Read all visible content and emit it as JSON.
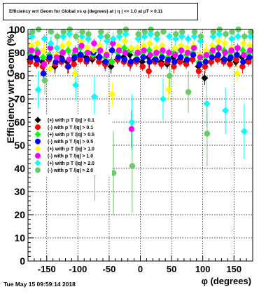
{
  "footer": "Tue May 15 09:59:14 2018",
  "colors": {
    "frame": "#000000",
    "grid": "#000000",
    "series": [
      "#000000",
      "#ff0000",
      "#00ff00",
      "#0000ff",
      "#ffff00",
      "#ff00ff",
      "#00ffff",
      "#66cc66"
    ]
  },
  "chart_data": {
    "type": "scatter",
    "title": "Efficiency wrt Geom for Global vs φ (degrees) at | η | <= 1.0 at pT > 0.11",
    "xlabel": "φ (degrees)",
    "ylabel": "Efficiency wrt Geom (%)",
    "xlim": [
      -180,
      180
    ],
    "ylim": [
      0,
      100
    ],
    "xticks": [
      -150,
      -100,
      -50,
      0,
      50,
      100,
      150
    ],
    "yticks": [
      0,
      10,
      20,
      30,
      40,
      50,
      60,
      70,
      80,
      90,
      100
    ],
    "grid": true,
    "legend_position": "left-middle",
    "legend": [
      "(+) with p T /|q| > 0.1",
      "(-) with p T /|q| > 0.1",
      "(+) with p T /|q| > 0.5",
      "(-) with p T /|q| > 0.5",
      "(+) with p T /|q| > 1.0",
      "(-) with p T /|q| > 1.0",
      "(+) with p T /|q| > 2.0",
      "(-) with p T /|q| > 2.0"
    ],
    "series": [
      {
        "name": "(+) with p T /|q| > 0.1",
        "x": [
          -175,
          -165,
          -155,
          -145,
          -135,
          -125,
          -115,
          -105,
          -95,
          -85,
          -75,
          -65,
          -55,
          -45,
          -35,
          -25,
          -15,
          -5,
          5,
          15,
          25,
          35,
          45,
          55,
          65,
          75,
          85,
          95,
          105,
          115,
          125,
          135,
          145,
          155,
          165,
          175
        ],
        "y": [
          87,
          88,
          86,
          87,
          84,
          88,
          86,
          87,
          89,
          88,
          87,
          88,
          86,
          84,
          87,
          88,
          89,
          87,
          86,
          88,
          87,
          86,
          85,
          88,
          87,
          86,
          87,
          84,
          79,
          86,
          88,
          87,
          87,
          86,
          88,
          87
        ],
        "err": [
          1,
          1,
          1,
          2,
          3,
          2,
          2,
          2,
          1,
          2,
          2,
          2,
          3,
          3,
          2,
          2,
          2,
          2,
          2,
          2,
          2,
          2,
          2,
          2,
          2,
          2,
          2,
          3,
          3,
          2,
          2,
          2,
          2,
          2,
          2,
          1
        ]
      },
      {
        "name": "(-) with p T /|q| > 0.1",
        "x": [
          -175,
          -165,
          -155,
          -145,
          -135,
          -125,
          -115,
          -105,
          -95,
          -85,
          -75,
          -65,
          -55,
          -45,
          -35,
          -25,
          -15,
          -5,
          5,
          15,
          25,
          35,
          45,
          55,
          65,
          75,
          85,
          95,
          105,
          115,
          125,
          135,
          145,
          155,
          165,
          175
        ],
        "y": [
          86,
          85,
          84,
          87,
          85,
          86,
          84,
          85,
          87,
          86,
          88,
          86,
          85,
          86,
          87,
          86,
          85,
          86,
          84,
          82,
          86,
          85,
          86,
          84,
          86,
          85,
          87,
          82,
          84,
          86,
          87,
          86,
          85,
          87,
          84,
          86
        ],
        "err": [
          2,
          2,
          3,
          2,
          3,
          2,
          3,
          2,
          2,
          2,
          2,
          2,
          3,
          2,
          2,
          2,
          3,
          2,
          2,
          3,
          2,
          2,
          2,
          3,
          2,
          2,
          2,
          3,
          3,
          2,
          2,
          2,
          2,
          2,
          3,
          2
        ]
      },
      {
        "name": "(+) with p T /|q| > 0.5",
        "x": [
          -175,
          -165,
          -155,
          -145,
          -135,
          -125,
          -115,
          -105,
          -95,
          -85,
          -75,
          -65,
          -55,
          -45,
          -35,
          -25,
          -15,
          -5,
          5,
          15,
          25,
          35,
          45,
          55,
          65,
          75,
          85,
          95,
          105,
          115,
          125,
          135,
          145,
          155,
          165,
          175
        ],
        "y": [
          90,
          91,
          88,
          89,
          86,
          90,
          91,
          89,
          92,
          90,
          89,
          91,
          88,
          86,
          90,
          92,
          91,
          89,
          90,
          91,
          89,
          90,
          88,
          90,
          91,
          89,
          90,
          86,
          88,
          90,
          92,
          91,
          90,
          89,
          91,
          90
        ],
        "err": [
          2,
          2,
          2,
          2,
          3,
          2,
          2,
          3,
          2,
          2,
          2,
          2,
          3,
          3,
          2,
          2,
          2,
          2,
          2,
          2,
          2,
          2,
          2,
          2,
          2,
          2,
          2,
          3,
          3,
          2,
          2,
          2,
          2,
          2,
          2,
          2
        ]
      },
      {
        "name": "(-) with p T /|q| > 0.5",
        "x": [
          -175,
          -165,
          -155,
          -145,
          -135,
          -125,
          -115,
          -105,
          -95,
          -85,
          -75,
          -65,
          -55,
          -45,
          -35,
          -25,
          -15,
          -5,
          5,
          15,
          25,
          35,
          45,
          55,
          65,
          75,
          85,
          95,
          105,
          115,
          125,
          135,
          145,
          155,
          165,
          175
        ],
        "y": [
          88,
          87,
          81,
          88,
          86,
          87,
          84,
          88,
          89,
          87,
          90,
          88,
          86,
          91,
          88,
          87,
          86,
          87,
          88,
          86,
          87,
          88,
          87,
          86,
          88,
          87,
          89,
          85,
          86,
          88,
          89,
          87,
          88,
          89,
          86,
          88
        ],
        "err": [
          2,
          2,
          3,
          2,
          3,
          2,
          3,
          2,
          2,
          2,
          2,
          2,
          3,
          2,
          2,
          2,
          3,
          2,
          2,
          3,
          2,
          2,
          2,
          3,
          2,
          2,
          2,
          3,
          3,
          2,
          2,
          2,
          2,
          2,
          3,
          2
        ]
      },
      {
        "name": "(+) with p T /|q| > 1.0",
        "x": [
          -175,
          -165,
          -155,
          -145,
          -135,
          -125,
          -115,
          -105,
          -95,
          -85,
          -75,
          -65,
          -55,
          -45,
          -35,
          -25,
          -15,
          -5,
          5,
          15,
          25,
          35,
          45,
          55,
          65,
          75,
          85,
          95,
          105,
          115,
          125,
          135,
          145,
          155,
          165,
          175
        ],
        "y": [
          93,
          94,
          91,
          83,
          89,
          93,
          94,
          81,
          95,
          92,
          91,
          93,
          90,
          72,
          93,
          95,
          92,
          92,
          93,
          94,
          92,
          93,
          74,
          92,
          93,
          92,
          93,
          89,
          91,
          93,
          95,
          94,
          92,
          81,
          94,
          93
        ],
        "err": [
          2,
          2,
          3,
          3,
          3,
          2,
          2,
          4,
          2,
          2,
          2,
          2,
          3,
          5,
          2,
          2,
          3,
          2,
          2,
          2,
          2,
          2,
          5,
          2,
          2,
          2,
          2,
          3,
          3,
          2,
          2,
          2,
          2,
          4,
          2,
          2
        ]
      },
      {
        "name": "(-) with p T /|q| > 1.0",
        "x": [
          -175,
          -165,
          -155,
          -145,
          -135,
          -125,
          -115,
          -105,
          -95,
          -85,
          -75,
          -65,
          -55,
          -45,
          -35,
          -25,
          -15,
          -5,
          5,
          15,
          25,
          35,
          45,
          55,
          65,
          75,
          85,
          95,
          105,
          115,
          125,
          135,
          145,
          155,
          165,
          175
        ],
        "y": [
          91,
          90,
          85,
          92,
          88,
          90,
          87,
          91,
          93,
          90,
          94,
          91,
          89,
          94,
          91,
          90,
          57,
          90,
          91,
          89,
          90,
          91,
          90,
          89,
          91,
          90,
          92,
          88,
          89,
          91,
          92,
          90,
          91,
          92,
          89,
          91
        ],
        "err": [
          2,
          2,
          3,
          2,
          3,
          2,
          3,
          2,
          2,
          2,
          2,
          2,
          3,
          2,
          2,
          2,
          8,
          2,
          2,
          3,
          2,
          2,
          2,
          3,
          2,
          2,
          2,
          3,
          3,
          2,
          2,
          2,
          2,
          2,
          3,
          2
        ]
      },
      {
        "name": "(+) with p T /|q| > 2.0",
        "x": [
          -175,
          -165,
          -155,
          -145,
          -135,
          -125,
          -115,
          -105,
          -95,
          -85,
          -75,
          -65,
          -55,
          -45,
          -35,
          -25,
          -15,
          -5,
          5,
          15,
          25,
          35,
          45,
          55,
          65,
          75,
          85,
          95,
          105,
          115,
          125,
          135,
          145,
          155,
          165,
          175
        ],
        "y": [
          97,
          74,
          96,
          94,
          92,
          97,
          98,
          76,
          97,
          96,
          71,
          97,
          95,
          96,
          97,
          98,
          60,
          96,
          97,
          98,
          96,
          70,
          97,
          96,
          97,
          96,
          97,
          95,
          68,
          97,
          98,
          65,
          96,
          97,
          56,
          97
        ],
        "err": [
          2,
          8,
          2,
          3,
          4,
          2,
          2,
          7,
          2,
          2,
          9,
          2,
          3,
          3,
          2,
          2,
          12,
          2,
          2,
          2,
          2,
          9,
          2,
          3,
          2,
          2,
          2,
          3,
          10,
          2,
          2,
          10,
          3,
          2,
          12,
          2
        ]
      },
      {
        "name": "(-) with p T /|q| > 2.0",
        "x": [
          -175,
          -165,
          -155,
          -145,
          -135,
          -125,
          -115,
          -105,
          -95,
          -85,
          -75,
          -65,
          -55,
          -45,
          -35,
          -25,
          -15,
          -5,
          5,
          15,
          25,
          35,
          45,
          55,
          65,
          75,
          85,
          95,
          105,
          115,
          125,
          135,
          145,
          155,
          165,
          175
        ],
        "y": [
          99,
          100,
          78,
          99,
          97,
          99,
          100,
          97,
          99,
          98,
          38,
          99,
          97,
          38,
          99,
          100,
          41,
          98,
          99,
          100,
          98,
          99,
          80,
          98,
          99,
          73,
          99,
          97,
          55,
          99,
          100,
          98,
          99,
          100,
          97,
          99
        ],
        "err": [
          1,
          1,
          6,
          1,
          2,
          1,
          1,
          2,
          1,
          2,
          12,
          1,
          2,
          18,
          1,
          1,
          20,
          2,
          1,
          1,
          2,
          1,
          8,
          2,
          1,
          9,
          1,
          2,
          14,
          1,
          1,
          2,
          1,
          1,
          2,
          1
        ]
      }
    ]
  }
}
